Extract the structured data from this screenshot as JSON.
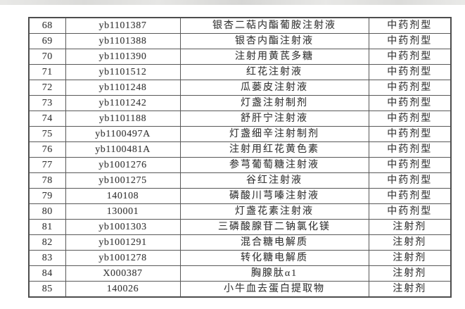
{
  "colors": {
    "background": "#ffffff",
    "table_border": "#4d4d4d",
    "cell_border": "#585858",
    "text": "#3a3a3a",
    "top_artifact": "#dcdcda"
  },
  "table": {
    "rows": [
      {
        "no": "68",
        "code": "yb1101387",
        "name": "银杏二萜内酯葡胺注射液",
        "category": "中药剂型"
      },
      {
        "no": "69",
        "code": "yb1101388",
        "name": "银杏内酯注射液",
        "category": "中药剂型"
      },
      {
        "no": "70",
        "code": "yb1101390",
        "name": "注射用黄芪多糖",
        "category": "中药剂型"
      },
      {
        "no": "71",
        "code": "yb1101512",
        "name": "红花注射液",
        "category": "中药剂型"
      },
      {
        "no": "72",
        "code": "yb1101248",
        "name": "瓜蒌皮注射液",
        "category": "中药剂型"
      },
      {
        "no": "73",
        "code": "yb1101242",
        "name": "灯盏注射制剂",
        "category": "中药剂型"
      },
      {
        "no": "74",
        "code": "yb1101188",
        "name": "舒肝宁注射液",
        "category": "中药剂型"
      },
      {
        "no": "75",
        "code": "yb1100497A",
        "name": "灯盏细辛注射制剂",
        "category": "中药剂型"
      },
      {
        "no": "76",
        "code": "yb1100481A",
        "name": "注射用红花黄色素",
        "category": "中药剂型"
      },
      {
        "no": "77",
        "code": "yb1001276",
        "name": "参芎葡萄糖注射液",
        "category": "中药剂型"
      },
      {
        "no": "78",
        "code": "yb1001275",
        "name": "谷红注射液",
        "category": "中药剂型"
      },
      {
        "no": "79",
        "code": "140108",
        "name": "磷酸川芎嗪注射液",
        "category": "中药剂型"
      },
      {
        "no": "80",
        "code": "130001",
        "name": "灯盏花素注射液",
        "category": "中药剂型"
      },
      {
        "no": "81",
        "code": "yb1001303",
        "name": "三磷酸腺苷二钠氯化镁",
        "category": "注射剂"
      },
      {
        "no": "82",
        "code": "yb1001291",
        "name": "混合糖电解质",
        "category": "注射剂"
      },
      {
        "no": "83",
        "code": "yb1001278",
        "name": "转化糖电解质",
        "category": "注射剂"
      },
      {
        "no": "84",
        "code": "X000387",
        "name": "胸腺肽α1",
        "category": "注射剂"
      },
      {
        "no": "85",
        "code": "140026",
        "name": "小牛血去蛋白提取物",
        "category": "注射剂"
      }
    ]
  }
}
